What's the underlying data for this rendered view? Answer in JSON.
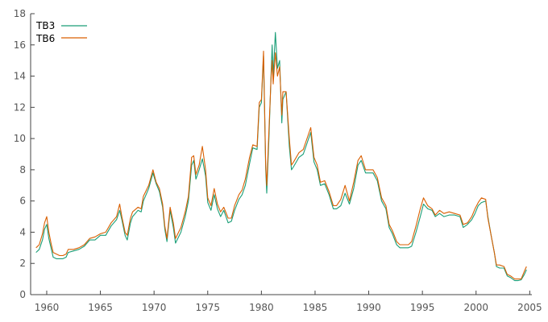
{
  "chart_data": {
    "type": "line",
    "title": "",
    "xlabel": "",
    "ylabel": "",
    "xlim": [
      1958.5,
      2005.2
    ],
    "ylim": [
      0,
      18
    ],
    "xticks": [
      1960,
      1965,
      1970,
      1975,
      1980,
      1985,
      1990,
      1995,
      2000,
      2005
    ],
    "xtick_labels": [
      "1960",
      "1965",
      "1970",
      "1975",
      "1980",
      "1985",
      "1990",
      "1995",
      "2000",
      "2005"
    ],
    "yticks": [
      0,
      2,
      4,
      6,
      8,
      10,
      12,
      14,
      16,
      18
    ],
    "ytick_labels": [
      "0",
      "2",
      "4",
      "6",
      "8",
      "10",
      "12",
      "14",
      "16",
      "18"
    ],
    "grid": false,
    "legend": "top-left",
    "series": [
      {
        "name": "TB3",
        "color": "#1a9e77",
        "points": [
          [
            1959.0,
            2.7
          ],
          [
            1959.3,
            2.9
          ],
          [
            1959.6,
            3.5
          ],
          [
            1959.8,
            4.2
          ],
          [
            1960.0,
            4.5
          ],
          [
            1960.2,
            3.6
          ],
          [
            1960.4,
            3.0
          ],
          [
            1960.6,
            2.4
          ],
          [
            1960.9,
            2.3
          ],
          [
            1961.2,
            2.3
          ],
          [
            1961.5,
            2.3
          ],
          [
            1961.8,
            2.4
          ],
          [
            1962.0,
            2.7
          ],
          [
            1962.5,
            2.8
          ],
          [
            1963.0,
            2.9
          ],
          [
            1963.5,
            3.1
          ],
          [
            1964.0,
            3.5
          ],
          [
            1964.5,
            3.5
          ],
          [
            1965.0,
            3.8
          ],
          [
            1965.5,
            3.8
          ],
          [
            1966.0,
            4.4
          ],
          [
            1966.5,
            4.8
          ],
          [
            1966.8,
            5.4
          ],
          [
            1967.0,
            4.8
          ],
          [
            1967.3,
            3.8
          ],
          [
            1967.5,
            3.5
          ],
          [
            1967.8,
            4.6
          ],
          [
            1968.0,
            5.0
          ],
          [
            1968.5,
            5.4
          ],
          [
            1968.8,
            5.3
          ],
          [
            1969.0,
            6.0
          ],
          [
            1969.5,
            6.8
          ],
          [
            1969.9,
            7.8
          ],
          [
            1970.2,
            7.1
          ],
          [
            1970.5,
            6.6
          ],
          [
            1970.8,
            5.6
          ],
          [
            1971.0,
            4.2
          ],
          [
            1971.2,
            3.4
          ],
          [
            1971.5,
            5.4
          ],
          [
            1971.8,
            4.3
          ],
          [
            1972.0,
            3.3
          ],
          [
            1972.5,
            4.0
          ],
          [
            1972.9,
            5.0
          ],
          [
            1973.2,
            6.0
          ],
          [
            1973.5,
            8.3
          ],
          [
            1973.7,
            8.6
          ],
          [
            1973.9,
            7.4
          ],
          [
            1974.2,
            8.0
          ],
          [
            1974.5,
            8.7
          ],
          [
            1974.8,
            7.6
          ],
          [
            1975.0,
            5.9
          ],
          [
            1975.3,
            5.4
          ],
          [
            1975.6,
            6.4
          ],
          [
            1975.9,
            5.5
          ],
          [
            1976.2,
            5.0
          ],
          [
            1976.5,
            5.4
          ],
          [
            1976.9,
            4.6
          ],
          [
            1977.2,
            4.7
          ],
          [
            1977.5,
            5.4
          ],
          [
            1977.9,
            6.1
          ],
          [
            1978.2,
            6.4
          ],
          [
            1978.5,
            7.0
          ],
          [
            1978.9,
            8.4
          ],
          [
            1979.2,
            9.4
          ],
          [
            1979.6,
            9.3
          ],
          [
            1979.8,
            12.0
          ],
          [
            1980.0,
            12.3
          ],
          [
            1980.2,
            15.3
          ],
          [
            1980.4,
            8.0
          ],
          [
            1980.5,
            6.5
          ],
          [
            1980.7,
            10.0
          ],
          [
            1980.9,
            14.0
          ],
          [
            1981.0,
            16.0
          ],
          [
            1981.1,
            14.0
          ],
          [
            1981.3,
            16.8
          ],
          [
            1981.5,
            14.5
          ],
          [
            1981.7,
            15.0
          ],
          [
            1981.9,
            11.0
          ],
          [
            1982.0,
            12.5
          ],
          [
            1982.3,
            13.0
          ],
          [
            1982.6,
            9.5
          ],
          [
            1982.8,
            8.0
          ],
          [
            1983.0,
            8.2
          ],
          [
            1983.5,
            8.8
          ],
          [
            1983.9,
            9.0
          ],
          [
            1984.2,
            9.6
          ],
          [
            1984.6,
            10.4
          ],
          [
            1984.9,
            8.5
          ],
          [
            1985.2,
            8.0
          ],
          [
            1985.5,
            7.0
          ],
          [
            1985.9,
            7.1
          ],
          [
            1986.3,
            6.4
          ],
          [
            1986.7,
            5.5
          ],
          [
            1987.0,
            5.5
          ],
          [
            1987.4,
            5.7
          ],
          [
            1987.8,
            6.5
          ],
          [
            1988.2,
            5.8
          ],
          [
            1988.6,
            6.8
          ],
          [
            1989.0,
            8.3
          ],
          [
            1989.3,
            8.6
          ],
          [
            1989.7,
            7.8
          ],
          [
            1990.0,
            7.8
          ],
          [
            1990.4,
            7.8
          ],
          [
            1990.8,
            7.3
          ],
          [
            1991.2,
            6.0
          ],
          [
            1991.6,
            5.5
          ],
          [
            1991.9,
            4.3
          ],
          [
            1992.2,
            3.9
          ],
          [
            1992.6,
            3.2
          ],
          [
            1992.9,
            3.0
          ],
          [
            1993.3,
            3.0
          ],
          [
            1993.7,
            3.0
          ],
          [
            1994.0,
            3.1
          ],
          [
            1994.4,
            4.0
          ],
          [
            1994.8,
            5.0
          ],
          [
            1995.1,
            5.8
          ],
          [
            1995.5,
            5.5
          ],
          [
            1995.9,
            5.4
          ],
          [
            1996.2,
            5.0
          ],
          [
            1996.6,
            5.2
          ],
          [
            1997.0,
            5.0
          ],
          [
            1997.5,
            5.1
          ],
          [
            1998.0,
            5.1
          ],
          [
            1998.5,
            5.0
          ],
          [
            1998.8,
            4.3
          ],
          [
            1999.2,
            4.5
          ],
          [
            1999.6,
            4.8
          ],
          [
            1999.9,
            5.2
          ],
          [
            2000.2,
            5.7
          ],
          [
            2000.5,
            5.9
          ],
          [
            2000.9,
            6.0
          ],
          [
            2001.1,
            5.0
          ],
          [
            2001.4,
            3.8
          ],
          [
            2001.7,
            2.7
          ],
          [
            2001.9,
            1.8
          ],
          [
            2002.2,
            1.7
          ],
          [
            2002.6,
            1.7
          ],
          [
            2002.9,
            1.2
          ],
          [
            2003.2,
            1.1
          ],
          [
            2003.6,
            0.9
          ],
          [
            2003.9,
            0.9
          ],
          [
            2004.2,
            0.95
          ],
          [
            2004.5,
            1.3
          ],
          [
            2004.7,
            1.6
          ]
        ]
      },
      {
        "name": "TB6",
        "color": "#d95f02",
        "points": [
          [
            1959.0,
            3.0
          ],
          [
            1959.3,
            3.2
          ],
          [
            1959.6,
            3.9
          ],
          [
            1959.8,
            4.6
          ],
          [
            1960.0,
            5.0
          ],
          [
            1960.2,
            4.0
          ],
          [
            1960.4,
            3.3
          ],
          [
            1960.6,
            2.7
          ],
          [
            1960.9,
            2.6
          ],
          [
            1961.2,
            2.5
          ],
          [
            1961.5,
            2.5
          ],
          [
            1961.8,
            2.6
          ],
          [
            1962.0,
            2.9
          ],
          [
            1962.5,
            2.9
          ],
          [
            1963.0,
            3.0
          ],
          [
            1963.5,
            3.2
          ],
          [
            1964.0,
            3.6
          ],
          [
            1964.5,
            3.7
          ],
          [
            1965.0,
            3.9
          ],
          [
            1965.5,
            4.0
          ],
          [
            1966.0,
            4.6
          ],
          [
            1966.5,
            5.0
          ],
          [
            1966.8,
            5.8
          ],
          [
            1967.0,
            5.0
          ],
          [
            1967.3,
            4.0
          ],
          [
            1967.5,
            3.8
          ],
          [
            1967.8,
            4.9
          ],
          [
            1968.0,
            5.3
          ],
          [
            1968.5,
            5.6
          ],
          [
            1968.8,
            5.5
          ],
          [
            1969.0,
            6.3
          ],
          [
            1969.5,
            7.0
          ],
          [
            1969.9,
            8.0
          ],
          [
            1970.2,
            7.2
          ],
          [
            1970.5,
            6.8
          ],
          [
            1970.8,
            5.8
          ],
          [
            1971.0,
            4.4
          ],
          [
            1971.2,
            3.6
          ],
          [
            1971.5,
            5.6
          ],
          [
            1971.8,
            4.6
          ],
          [
            1972.0,
            3.6
          ],
          [
            1972.5,
            4.3
          ],
          [
            1972.9,
            5.3
          ],
          [
            1973.2,
            6.3
          ],
          [
            1973.5,
            8.8
          ],
          [
            1973.7,
            8.9
          ],
          [
            1973.9,
            7.7
          ],
          [
            1974.2,
            8.3
          ],
          [
            1974.5,
            9.5
          ],
          [
            1974.8,
            8.0
          ],
          [
            1975.0,
            6.2
          ],
          [
            1975.3,
            5.7
          ],
          [
            1975.6,
            6.8
          ],
          [
            1975.9,
            5.8
          ],
          [
            1976.2,
            5.3
          ],
          [
            1976.5,
            5.6
          ],
          [
            1976.9,
            4.9
          ],
          [
            1977.2,
            4.9
          ],
          [
            1977.5,
            5.7
          ],
          [
            1977.9,
            6.4
          ],
          [
            1978.2,
            6.7
          ],
          [
            1978.5,
            7.4
          ],
          [
            1978.9,
            8.8
          ],
          [
            1979.2,
            9.6
          ],
          [
            1979.6,
            9.5
          ],
          [
            1979.8,
            12.3
          ],
          [
            1980.0,
            12.5
          ],
          [
            1980.2,
            15.6
          ],
          [
            1980.4,
            8.3
          ],
          [
            1980.5,
            7.0
          ],
          [
            1980.7,
            10.5
          ],
          [
            1980.9,
            13.8
          ],
          [
            1981.0,
            15.0
          ],
          [
            1981.1,
            13.5
          ],
          [
            1981.3,
            15.5
          ],
          [
            1981.5,
            14.0
          ],
          [
            1981.7,
            14.6
          ],
          [
            1981.9,
            11.5
          ],
          [
            1982.0,
            13.0
          ],
          [
            1982.3,
            13.0
          ],
          [
            1982.6,
            10.0
          ],
          [
            1982.8,
            8.3
          ],
          [
            1983.0,
            8.5
          ],
          [
            1983.5,
            9.1
          ],
          [
            1983.9,
            9.3
          ],
          [
            1984.2,
            9.9
          ],
          [
            1984.6,
            10.7
          ],
          [
            1984.9,
            8.8
          ],
          [
            1985.2,
            8.3
          ],
          [
            1985.5,
            7.2
          ],
          [
            1985.9,
            7.3
          ],
          [
            1986.3,
            6.6
          ],
          [
            1986.7,
            5.7
          ],
          [
            1987.0,
            5.7
          ],
          [
            1987.4,
            6.1
          ],
          [
            1987.8,
            7.0
          ],
          [
            1988.2,
            6.0
          ],
          [
            1988.6,
            7.2
          ],
          [
            1989.0,
            8.6
          ],
          [
            1989.3,
            8.9
          ],
          [
            1989.7,
            8.0
          ],
          [
            1990.0,
            8.0
          ],
          [
            1990.4,
            8.0
          ],
          [
            1990.8,
            7.5
          ],
          [
            1991.2,
            6.2
          ],
          [
            1991.6,
            5.7
          ],
          [
            1991.9,
            4.5
          ],
          [
            1992.2,
            4.1
          ],
          [
            1992.6,
            3.4
          ],
          [
            1992.9,
            3.2
          ],
          [
            1993.3,
            3.2
          ],
          [
            1993.7,
            3.2
          ],
          [
            1994.0,
            3.4
          ],
          [
            1994.4,
            4.4
          ],
          [
            1994.8,
            5.5
          ],
          [
            1995.1,
            6.2
          ],
          [
            1995.5,
            5.7
          ],
          [
            1995.9,
            5.5
          ],
          [
            1996.2,
            5.1
          ],
          [
            1996.6,
            5.4
          ],
          [
            1997.0,
            5.2
          ],
          [
            1997.5,
            5.3
          ],
          [
            1998.0,
            5.2
          ],
          [
            1998.5,
            5.1
          ],
          [
            1998.8,
            4.5
          ],
          [
            1999.2,
            4.6
          ],
          [
            1999.6,
            5.0
          ],
          [
            1999.9,
            5.5
          ],
          [
            2000.2,
            5.9
          ],
          [
            2000.5,
            6.2
          ],
          [
            2000.9,
            6.1
          ],
          [
            2001.1,
            4.9
          ],
          [
            2001.4,
            3.8
          ],
          [
            2001.7,
            2.7
          ],
          [
            2001.9,
            1.9
          ],
          [
            2002.2,
            1.9
          ],
          [
            2002.6,
            1.8
          ],
          [
            2002.9,
            1.3
          ],
          [
            2003.2,
            1.2
          ],
          [
            2003.6,
            1.0
          ],
          [
            2003.9,
            1.0
          ],
          [
            2004.2,
            1.0
          ],
          [
            2004.5,
            1.5
          ],
          [
            2004.7,
            1.8
          ]
        ]
      }
    ]
  }
}
